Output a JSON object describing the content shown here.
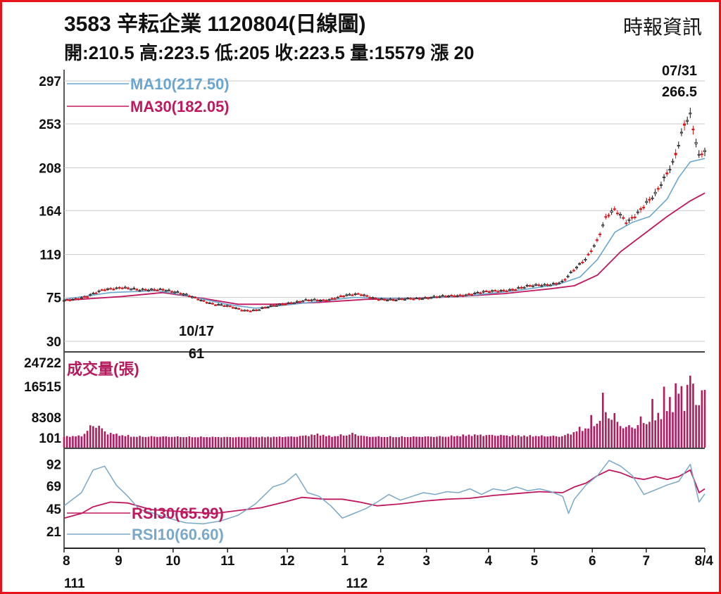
{
  "header": {
    "title": "3583  辛耘企業 1120804(日線圖)",
    "source": "時報資訊",
    "ohlc": "開:210.5 高:223.5 低:205 收:223.5 量:15579 漲 20"
  },
  "colors": {
    "frame": "#e8141c",
    "ma10": "#6aa6cf",
    "ma30": "#c0185f",
    "up_candle": "#d6161c",
    "down_candle": "#111111",
    "volume": "#b5195e",
    "rsi10": "#7aa8c8",
    "rsi30": "#c0185f",
    "grid": "#c8c8c8"
  },
  "chart_data": [
    {
      "type": "candlestick",
      "panel": "price",
      "y_ticks": [
        "297",
        "253",
        "208",
        "164",
        "119",
        "75",
        "30"
      ],
      "y_tick_values": [
        297,
        253,
        208,
        164,
        119,
        75,
        30
      ],
      "ylim": [
        30,
        297
      ],
      "grid": true,
      "legend": [
        {
          "name": "MA10(217.50)",
          "color_key": "ma10"
        },
        {
          "name": "MA30(182.05)",
          "color_key": "ma30"
        }
      ],
      "annotations": [
        {
          "date": "07/31",
          "value": "266.5",
          "label_lines": [
            "07/31",
            "266.5"
          ],
          "kind": "high"
        },
        {
          "date": "10/17",
          "value": "61",
          "label_lines": [
            "10/17",
            "61"
          ],
          "kind": "low"
        }
      ],
      "price_path": [
        {
          "x": 0,
          "y": 72
        },
        {
          "x": 4,
          "y": 76
        },
        {
          "x": 7,
          "y": 83
        },
        {
          "x": 10,
          "y": 86
        },
        {
          "x": 13,
          "y": 82
        },
        {
          "x": 17,
          "y": 84
        },
        {
          "x": 20,
          "y": 79
        },
        {
          "x": 23,
          "y": 74
        },
        {
          "x": 26,
          "y": 68
        },
        {
          "x": 29,
          "y": 65
        },
        {
          "x": 31,
          "y": 62
        },
        {
          "x": 33,
          "y": 62
        },
        {
          "x": 36,
          "y": 66
        },
        {
          "x": 39,
          "y": 70
        },
        {
          "x": 42,
          "y": 72
        },
        {
          "x": 45,
          "y": 72
        },
        {
          "x": 48,
          "y": 77
        },
        {
          "x": 51,
          "y": 78
        },
        {
          "x": 54,
          "y": 74
        },
        {
          "x": 57,
          "y": 72
        },
        {
          "x": 60,
          "y": 74
        },
        {
          "x": 63,
          "y": 75
        },
        {
          "x": 66,
          "y": 76
        },
        {
          "x": 69,
          "y": 78
        },
        {
          "x": 72,
          "y": 80
        },
        {
          "x": 75,
          "y": 82
        },
        {
          "x": 78,
          "y": 84
        },
        {
          "x": 81,
          "y": 87
        },
        {
          "x": 84,
          "y": 89
        },
        {
          "x": 86,
          "y": 91
        },
        {
          "x": 88,
          "y": 103
        },
        {
          "x": 90,
          "y": 115
        },
        {
          "x": 92,
          "y": 135
        },
        {
          "x": 93.5,
          "y": 158
        },
        {
          "x": 95,
          "y": 164
        },
        {
          "x": 97,
          "y": 152
        },
        {
          "x": 98.5,
          "y": 160
        },
        {
          "x": 100,
          "y": 170
        },
        {
          "x": 102,
          "y": 180
        },
        {
          "x": 103.5,
          "y": 196
        },
        {
          "x": 105,
          "y": 214
        },
        {
          "x": 107,
          "y": 255
        },
        {
          "x": 108,
          "y": 262
        },
        {
          "x": 109.5,
          "y": 218
        },
        {
          "x": 110.5,
          "y": 224
        }
      ],
      "ma10_path": [
        {
          "x": 0,
          "y": 73
        },
        {
          "x": 8,
          "y": 80
        },
        {
          "x": 16,
          "y": 82
        },
        {
          "x": 22,
          "y": 76
        },
        {
          "x": 28,
          "y": 68
        },
        {
          "x": 33,
          "y": 64
        },
        {
          "x": 38,
          "y": 67
        },
        {
          "x": 44,
          "y": 71
        },
        {
          "x": 50,
          "y": 75
        },
        {
          "x": 56,
          "y": 74
        },
        {
          "x": 62,
          "y": 74
        },
        {
          "x": 70,
          "y": 77
        },
        {
          "x": 78,
          "y": 82
        },
        {
          "x": 85,
          "y": 88
        },
        {
          "x": 89,
          "y": 96
        },
        {
          "x": 92,
          "y": 114
        },
        {
          "x": 95,
          "y": 142
        },
        {
          "x": 98,
          "y": 152
        },
        {
          "x": 101,
          "y": 158
        },
        {
          "x": 104,
          "y": 176
        },
        {
          "x": 106,
          "y": 198
        },
        {
          "x": 108,
          "y": 214
        },
        {
          "x": 110.5,
          "y": 217.5
        }
      ],
      "ma30_path": [
        {
          "x": 0,
          "y": 72
        },
        {
          "x": 10,
          "y": 76
        },
        {
          "x": 17,
          "y": 80
        },
        {
          "x": 24,
          "y": 74
        },
        {
          "x": 30,
          "y": 68
        },
        {
          "x": 36,
          "y": 68
        },
        {
          "x": 44,
          "y": 70
        },
        {
          "x": 52,
          "y": 73
        },
        {
          "x": 60,
          "y": 74
        },
        {
          "x": 68,
          "y": 76
        },
        {
          "x": 76,
          "y": 79
        },
        {
          "x": 84,
          "y": 84
        },
        {
          "x": 88,
          "y": 87
        },
        {
          "x": 92,
          "y": 98
        },
        {
          "x": 96,
          "y": 122
        },
        {
          "x": 100,
          "y": 140
        },
        {
          "x": 104,
          "y": 158
        },
        {
          "x": 108,
          "y": 174
        },
        {
          "x": 110.5,
          "y": 182.05
        }
      ]
    },
    {
      "type": "bar",
      "panel": "volume",
      "legend": [
        {
          "name": "成交量(張)",
          "color_key": "volume"
        }
      ],
      "y_ticks": [
        "24722",
        "16515",
        "8308",
        "101"
      ],
      "y_tick_values": [
        24722,
        16515,
        8308,
        101
      ],
      "ylim": [
        0,
        24722
      ],
      "volume_profile": [
        {
          "x": 0,
          "y": 900
        },
        {
          "x": 3,
          "y": 1200
        },
        {
          "x": 4,
          "y": 4000
        },
        {
          "x": 5,
          "y": 7500
        },
        {
          "x": 5.5,
          "y": 8000
        },
        {
          "x": 7,
          "y": 3500
        },
        {
          "x": 9,
          "y": 2000
        },
        {
          "x": 12,
          "y": 900
        },
        {
          "x": 20,
          "y": 700
        },
        {
          "x": 30,
          "y": 500
        },
        {
          "x": 40,
          "y": 800
        },
        {
          "x": 44,
          "y": 2200
        },
        {
          "x": 46,
          "y": 900
        },
        {
          "x": 50,
          "y": 2400
        },
        {
          "x": 52,
          "y": 800
        },
        {
          "x": 60,
          "y": 700
        },
        {
          "x": 66,
          "y": 900
        },
        {
          "x": 70,
          "y": 1800
        },
        {
          "x": 75,
          "y": 1500
        },
        {
          "x": 86,
          "y": 1000
        },
        {
          "x": 88,
          "y": 3500
        },
        {
          "x": 90,
          "y": 6500
        },
        {
          "x": 92,
          "y": 12000
        },
        {
          "x": 93.5,
          "y": 17000
        },
        {
          "x": 95,
          "y": 10000
        },
        {
          "x": 97,
          "y": 5500
        },
        {
          "x": 99,
          "y": 8000
        },
        {
          "x": 101,
          "y": 12500
        },
        {
          "x": 103,
          "y": 16500
        },
        {
          "x": 105,
          "y": 20000
        },
        {
          "x": 107,
          "y": 22000
        },
        {
          "x": 108,
          "y": 24722
        },
        {
          "x": 109,
          "y": 21000
        },
        {
          "x": 110.5,
          "y": 15579
        }
      ]
    },
    {
      "type": "line",
      "panel": "rsi",
      "y_ticks": [
        "92",
        "69",
        "45",
        "21"
      ],
      "y_tick_values": [
        92,
        69,
        45,
        21
      ],
      "ylim": [
        15,
        97
      ],
      "legend": [
        {
          "name": "RSI30(65.99)",
          "color_key": "rsi30"
        },
        {
          "name": "RSI10(60.60)",
          "color_key": "rsi10"
        }
      ],
      "series": [
        {
          "name": "RSI30(65.99)",
          "color_key": "rsi30",
          "points": [
            {
              "x": 0,
              "y": 35
            },
            {
              "x": 3,
              "y": 40
            },
            {
              "x": 5,
              "y": 47
            },
            {
              "x": 8,
              "y": 52
            },
            {
              "x": 11,
              "y": 51
            },
            {
              "x": 15,
              "y": 44
            },
            {
              "x": 20,
              "y": 42
            },
            {
              "x": 26,
              "y": 40
            },
            {
              "x": 30,
              "y": 43
            },
            {
              "x": 34,
              "y": 46
            },
            {
              "x": 38,
              "y": 52
            },
            {
              "x": 41,
              "y": 57
            },
            {
              "x": 45,
              "y": 55
            },
            {
              "x": 48,
              "y": 55
            },
            {
              "x": 51,
              "y": 52
            },
            {
              "x": 54,
              "y": 48
            },
            {
              "x": 58,
              "y": 50
            },
            {
              "x": 62,
              "y": 53
            },
            {
              "x": 66,
              "y": 55
            },
            {
              "x": 70,
              "y": 56
            },
            {
              "x": 74,
              "y": 59
            },
            {
              "x": 78,
              "y": 61
            },
            {
              "x": 82,
              "y": 63
            },
            {
              "x": 86,
              "y": 62
            },
            {
              "x": 88,
              "y": 68
            },
            {
              "x": 90,
              "y": 72
            },
            {
              "x": 92,
              "y": 80
            },
            {
              "x": 94,
              "y": 86
            },
            {
              "x": 96,
              "y": 83
            },
            {
              "x": 98,
              "y": 78
            },
            {
              "x": 100,
              "y": 76
            },
            {
              "x": 102,
              "y": 79
            },
            {
              "x": 104,
              "y": 76
            },
            {
              "x": 106,
              "y": 79
            },
            {
              "x": 108,
              "y": 86
            },
            {
              "x": 109.5,
              "y": 62
            },
            {
              "x": 110.5,
              "y": 65.99
            }
          ]
        },
        {
          "name": "RSI10(60.60)",
          "color_key": "rsi10",
          "points": [
            {
              "x": 0,
              "y": 48
            },
            {
              "x": 3,
              "y": 62
            },
            {
              "x": 5,
              "y": 86
            },
            {
              "x": 7,
              "y": 90
            },
            {
              "x": 9,
              "y": 70
            },
            {
              "x": 11,
              "y": 58
            },
            {
              "x": 13,
              "y": 44
            },
            {
              "x": 15,
              "y": 41
            },
            {
              "x": 18,
              "y": 35
            },
            {
              "x": 21,
              "y": 30
            },
            {
              "x": 24,
              "y": 29
            },
            {
              "x": 27,
              "y": 32
            },
            {
              "x": 30,
              "y": 38
            },
            {
              "x": 33,
              "y": 50
            },
            {
              "x": 36,
              "y": 68
            },
            {
              "x": 38,
              "y": 72
            },
            {
              "x": 40,
              "y": 82
            },
            {
              "x": 42,
              "y": 62
            },
            {
              "x": 44,
              "y": 58
            },
            {
              "x": 46,
              "y": 48
            },
            {
              "x": 48,
              "y": 35
            },
            {
              "x": 50,
              "y": 40
            },
            {
              "x": 52,
              "y": 45
            },
            {
              "x": 54,
              "y": 52
            },
            {
              "x": 56,
              "y": 60
            },
            {
              "x": 58,
              "y": 54
            },
            {
              "x": 60,
              "y": 58
            },
            {
              "x": 62,
              "y": 62
            },
            {
              "x": 64,
              "y": 60
            },
            {
              "x": 66,
              "y": 63
            },
            {
              "x": 68,
              "y": 62
            },
            {
              "x": 70,
              "y": 66
            },
            {
              "x": 72,
              "y": 60
            },
            {
              "x": 74,
              "y": 66
            },
            {
              "x": 76,
              "y": 64
            },
            {
              "x": 78,
              "y": 68
            },
            {
              "x": 80,
              "y": 64
            },
            {
              "x": 82,
              "y": 66
            },
            {
              "x": 84,
              "y": 63
            },
            {
              "x": 86,
              "y": 58
            },
            {
              "x": 87,
              "y": 40
            },
            {
              "x": 88,
              "y": 55
            },
            {
              "x": 90,
              "y": 70
            },
            {
              "x": 92,
              "y": 80
            },
            {
              "x": 94,
              "y": 96
            },
            {
              "x": 96,
              "y": 90
            },
            {
              "x": 98,
              "y": 80
            },
            {
              "x": 100,
              "y": 60
            },
            {
              "x": 102,
              "y": 65
            },
            {
              "x": 104,
              "y": 70
            },
            {
              "x": 106,
              "y": 74
            },
            {
              "x": 108,
              "y": 92
            },
            {
              "x": 109.5,
              "y": 52
            },
            {
              "x": 110.5,
              "y": 60.6
            }
          ]
        }
      ]
    }
  ],
  "x_axis": {
    "months": [
      {
        "label": "8",
        "x": 0
      },
      {
        "label": "9",
        "x": 9.4
      },
      {
        "label": "10",
        "x": 18.8
      },
      {
        "label": "11",
        "x": 28.2
      },
      {
        "label": "12",
        "x": 38.5
      },
      {
        "label": "1",
        "x": 48.4
      },
      {
        "label": "2",
        "x": 54.6
      },
      {
        "label": "3",
        "x": 62.5
      },
      {
        "label": "4",
        "x": 73.2
      },
      {
        "label": "5",
        "x": 81.1
      },
      {
        "label": "6",
        "x": 91.1
      },
      {
        "label": "7",
        "x": 100.4
      },
      {
        "label": "8/4",
        "x": 110.5
      }
    ],
    "years": [
      {
        "label": "111",
        "x": 1.8
      },
      {
        "label": "112",
        "x": 50.5
      }
    ]
  }
}
